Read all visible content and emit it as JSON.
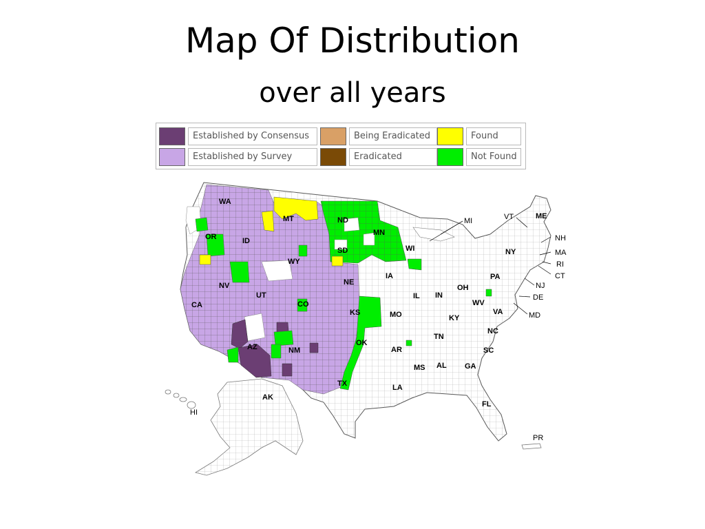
{
  "title": "Map Of Distribution",
  "subtitle": "over all years",
  "legend": [
    {
      "label": "Established by Consensus",
      "color": "#6b3e73"
    },
    {
      "label": "Being Eradicated",
      "color": "#d9a066"
    },
    {
      "label": "Found",
      "color": "#ffff00"
    },
    {
      "label": "Established by Survey",
      "color": "#c8a6e6"
    },
    {
      "label": "Eradicated",
      "color": "#7a4a06"
    },
    {
      "label": "Not Found",
      "color": "#00ee00"
    }
  ],
  "states": [
    "WA",
    "OR",
    "ID",
    "MT",
    "ND",
    "MN",
    "WI",
    "SD",
    "WY",
    "NV",
    "CA",
    "UT",
    "CO",
    "NE",
    "IA",
    "IL",
    "IN",
    "OH",
    "PA",
    "NY",
    "KS",
    "MO",
    "KY",
    "WV",
    "VA",
    "OK",
    "AR",
    "TN",
    "NC",
    "SC",
    "AZ",
    "NM",
    "TX",
    "MS",
    "AL",
    "GA",
    "LA",
    "FL",
    "AK"
  ],
  "external_labels": [
    "MI",
    "VT",
    "ME",
    "NH",
    "MA",
    "RI",
    "CT",
    "NJ",
    "DE",
    "MD",
    "HI",
    "PR"
  ]
}
